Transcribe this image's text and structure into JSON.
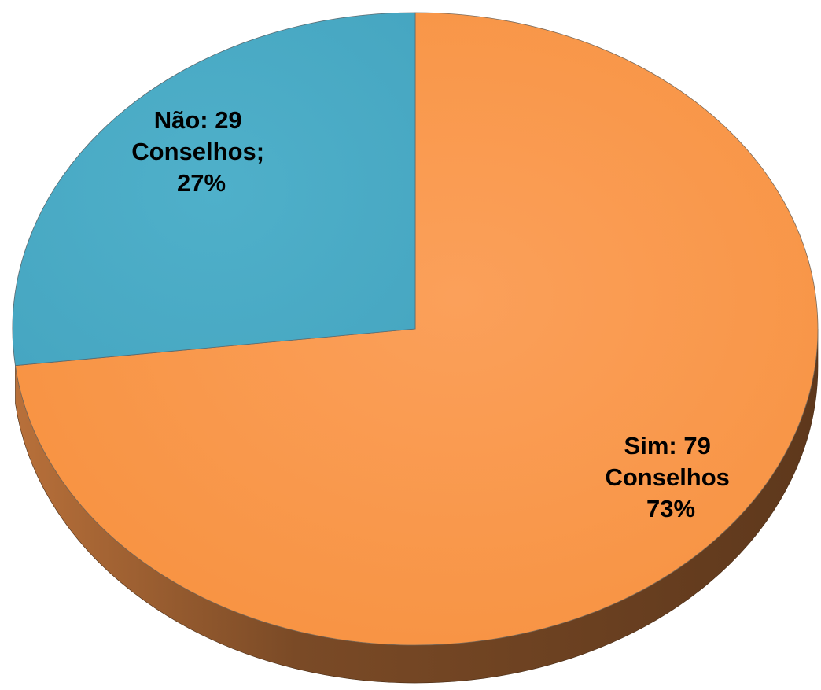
{
  "chart_data": {
    "type": "pie",
    "style": "3d",
    "categories": [
      "Sim",
      "Não"
    ],
    "values": [
      79,
      29
    ],
    "percent": [
      73,
      27
    ],
    "colors": {
      "Sim": "#f9994a",
      "Não": "#4babc6",
      "Sim_side_light": "#b8703a",
      "Sim_side_dark": "#633b1e"
    },
    "labels": [
      {
        "series": "Sim",
        "lines": [
          "Sim: 79",
          "Conselhos",
          "73%"
        ]
      },
      {
        "series": "Não",
        "lines": [
          "Não: 29",
          "Conselhos;",
          "27%"
        ]
      }
    ]
  }
}
